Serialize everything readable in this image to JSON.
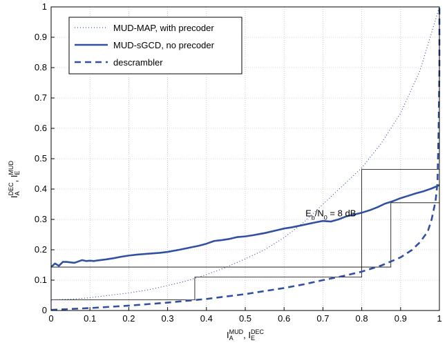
{
  "chart_data": {
    "type": "line",
    "title": "",
    "xlabel": {
      "base": "I",
      "sup1": "MUD",
      "sub1": "A",
      "sep": ", ",
      "base2": "I",
      "sup2": "DEC",
      "sub2": "E"
    },
    "ylabel": {
      "base": "I",
      "sup1": "DEC",
      "sub1": "A",
      "sep": ", ",
      "base2": "I",
      "sup2": "MUD",
      "sub2": "E"
    },
    "xlim": [
      0,
      1
    ],
    "ylim": [
      0,
      1
    ],
    "xticks": [
      0,
      0.1,
      0.2,
      0.3,
      0.4,
      0.5,
      0.6,
      0.7,
      0.8,
      0.9,
      1
    ],
    "yticks": [
      0,
      0.1,
      0.2,
      0.3,
      0.4,
      0.5,
      0.6,
      0.7,
      0.8,
      0.9,
      1
    ],
    "grid": true,
    "legend_position": "top-left",
    "line_color": "#3250a0",
    "annotation": {
      "base1": "E",
      "sub1": "b",
      "mid": "/N",
      "sub2": "0",
      "tail": " = 8 dB",
      "x": 0.655,
      "y": 0.31
    },
    "series": [
      {
        "name": "MUD-MAP, with precoder",
        "style": "dotted",
        "x": [
          0,
          0.05,
          0.1,
          0.15,
          0.2,
          0.25,
          0.3,
          0.35,
          0.4,
          0.45,
          0.5,
          0.55,
          0.6,
          0.65,
          0.7,
          0.75,
          0.8,
          0.85,
          0.9,
          0.95,
          1
        ],
        "y": [
          0.035,
          0.037,
          0.042,
          0.05,
          0.058,
          0.068,
          0.082,
          0.098,
          0.118,
          0.142,
          0.17,
          0.2,
          0.24,
          0.29,
          0.35,
          0.41,
          0.47,
          0.55,
          0.65,
          0.79,
          1
        ]
      },
      {
        "name": "MUD-sGCD, no precoder",
        "style": "solid",
        "x": [
          0,
          0.01,
          0.02,
          0.03,
          0.04,
          0.06,
          0.08,
          0.09,
          0.1,
          0.11,
          0.12,
          0.14,
          0.16,
          0.18,
          0.2,
          0.22,
          0.25,
          0.28,
          0.3,
          0.33,
          0.36,
          0.38,
          0.4,
          0.42,
          0.44,
          0.46,
          0.48,
          0.5,
          0.52,
          0.55,
          0.58,
          0.6,
          0.62,
          0.65,
          0.68,
          0.7,
          0.72,
          0.74,
          0.76,
          0.78,
          0.8,
          0.82,
          0.84,
          0.86,
          0.88,
          0.9,
          0.92,
          0.94,
          0.96,
          0.98,
          1
        ],
        "y": [
          0.143,
          0.155,
          0.147,
          0.16,
          0.16,
          0.157,
          0.166,
          0.163,
          0.164,
          0.163,
          0.165,
          0.168,
          0.172,
          0.177,
          0.181,
          0.184,
          0.187,
          0.19,
          0.193,
          0.2,
          0.208,
          0.213,
          0.22,
          0.229,
          0.232,
          0.236,
          0.242,
          0.244,
          0.248,
          0.255,
          0.264,
          0.27,
          0.274,
          0.282,
          0.29,
          0.295,
          0.293,
          0.3,
          0.31,
          0.316,
          0.322,
          0.33,
          0.34,
          0.352,
          0.36,
          0.37,
          0.378,
          0.386,
          0.393,
          0.402,
          0.413
        ]
      },
      {
        "name": "descrambler",
        "style": "dashed",
        "x": [
          0,
          0.05,
          0.1,
          0.15,
          0.2,
          0.25,
          0.3,
          0.35,
          0.4,
          0.45,
          0.5,
          0.55,
          0.6,
          0.65,
          0.7,
          0.75,
          0.8,
          0.85,
          0.9,
          0.93,
          0.95,
          0.97,
          0.98,
          0.99,
          0.995,
          0.998,
          1,
          1
        ],
        "y": [
          0.002,
          0.005,
          0.008,
          0.012,
          0.016,
          0.021,
          0.026,
          0.032,
          0.038,
          0.046,
          0.054,
          0.064,
          0.074,
          0.086,
          0.1,
          0.113,
          0.128,
          0.148,
          0.175,
          0.2,
          0.225,
          0.26,
          0.3,
          0.36,
          0.42,
          0.6,
          0.8,
          1
        ]
      }
    ],
    "trajectory": [
      [
        0,
        0.035
      ],
      [
        0.37,
        0.035
      ],
      [
        0.37,
        0.11
      ],
      [
        0.8,
        0.11
      ],
      [
        0.8,
        0.465
      ],
      [
        1,
        0.465
      ],
      [
        1,
        0.413
      ],
      [
        0,
        0.143
      ],
      [
        0.875,
        0.143
      ],
      [
        0.875,
        0.355
      ],
      [
        1,
        0.355
      ]
    ]
  }
}
